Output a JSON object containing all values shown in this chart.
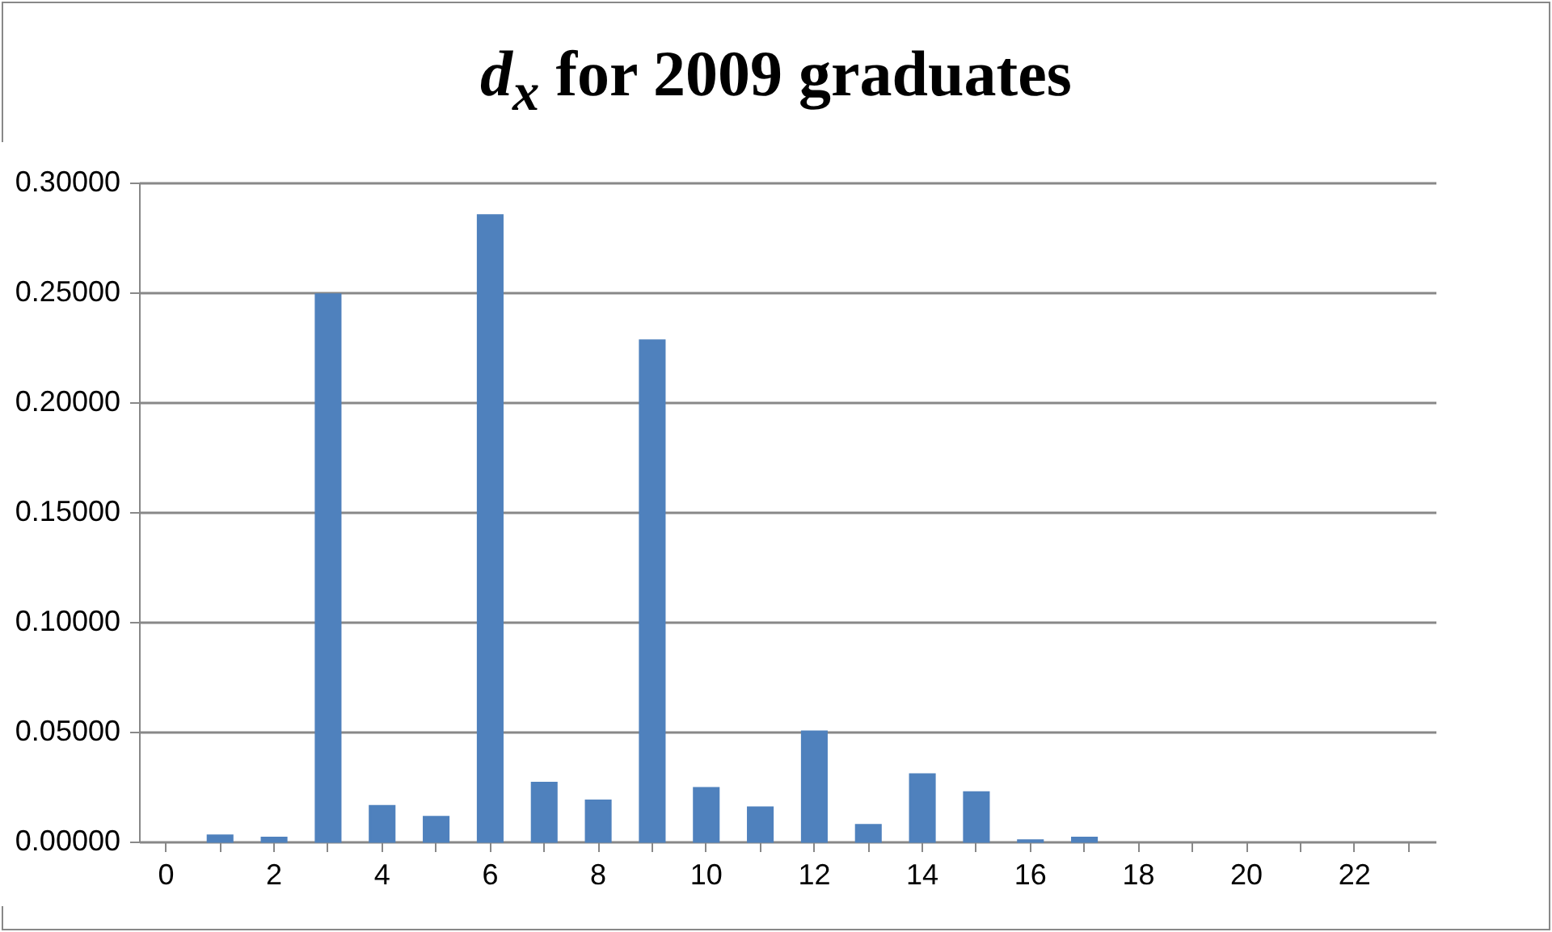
{
  "chart_data": {
    "type": "bar",
    "title": "d$_{x}$ for 2009 graduates",
    "categories": [
      "0",
      null,
      "2",
      null,
      "4",
      null,
      "6",
      null,
      "8",
      null,
      "10",
      null,
      "12",
      null,
      "14",
      null,
      "16",
      null,
      "18",
      null,
      "20",
      null,
      "22",
      null
    ],
    "values": [
      0,
      0.0027,
      0.0017,
      0.249,
      0.0161,
      0.0111,
      0.285,
      0.0267,
      0.0186,
      0.228,
      0.0243,
      0.0154,
      0.05,
      0.0074,
      0.0305,
      0.0223,
      0.0005,
      0.0017,
      0,
      0,
      0,
      0,
      0,
      0
    ],
    "color": "#4f81bd",
    "ylim": [
      0,
      0.3
    ],
    "yticks": [
      {
        "value": 0,
        "label": "0.00000"
      },
      {
        "value": 0.05,
        "label": "0.05000"
      },
      {
        "value": 0.1,
        "label": "0.10000"
      },
      {
        "value": 0.15,
        "label": "0.15000"
      },
      {
        "value": 0.2,
        "label": "0.20000"
      },
      {
        "value": 0.25,
        "label": "0.25000"
      },
      {
        "value": 0.3,
        "label": "0.30000"
      }
    ],
    "grid": "y"
  }
}
